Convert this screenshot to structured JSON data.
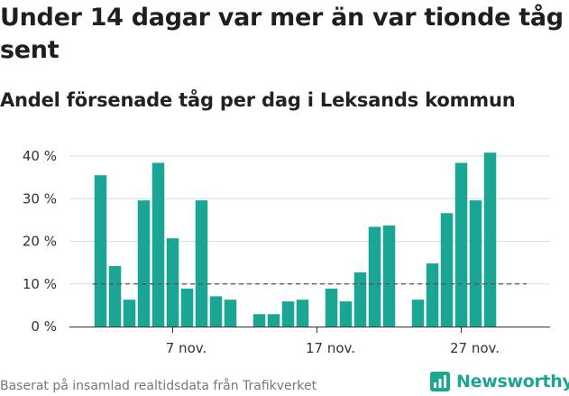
{
  "title": "Under 14 dagar var mer än var tionde tåg sent",
  "subtitle": "Andel försenade tåg per dag i Leksands kommun",
  "footer": "Baserat på insamlad realtidsdata från Trafikverket",
  "logo_text": "Newsworthy",
  "colors": {
    "bar": "#1aa594",
    "grid": "#dcdcdc",
    "reference": "#555555",
    "axis": "#333333",
    "brand": "#1ba68f"
  },
  "icons": {
    "logo": "newsworthy-logo-icon"
  },
  "chart_data": {
    "type": "bar",
    "title": "Under 14 dagar var mer än var tionde tåg sent",
    "subtitle": "Andel försenade tåg per dag i Leksands kommun",
    "xlabel": "",
    "ylabel": "",
    "unit": "%",
    "ylim": [
      0,
      40
    ],
    "yticks": [
      0,
      10,
      20,
      30,
      40
    ],
    "ytick_labels": [
      "0 %",
      "10 %",
      "20 %",
      "30 %",
      "40 %"
    ],
    "grid": true,
    "x_start_date": "2023-11-02",
    "x": [
      "2023-11-02",
      "2023-11-03",
      "2023-11-04",
      "2023-11-05",
      "2023-11-06",
      "2023-11-07",
      "2023-11-08",
      "2023-11-09",
      "2023-11-10",
      "2023-11-11",
      "2023-11-12",
      "2023-11-13",
      "2023-11-14",
      "2023-11-15",
      "2023-11-16",
      "2023-11-17",
      "2023-11-18",
      "2023-11-19",
      "2023-11-20",
      "2023-11-21",
      "2023-11-22",
      "2023-11-23",
      "2023-11-24",
      "2023-11-25",
      "2023-11-26",
      "2023-11-27",
      "2023-11-28",
      "2023-11-29",
      "2023-11-30"
    ],
    "values": [
      35.5,
      14.2,
      6.3,
      29.6,
      38.4,
      20.7,
      8.9,
      29.6,
      7.1,
      6.3,
      null,
      2.9,
      2.9,
      5.9,
      6.3,
      null,
      8.9,
      5.9,
      12.7,
      23.4,
      23.7,
      null,
      6.3,
      14.8,
      26.6,
      38.4,
      29.6,
      40.8,
      null
    ],
    "xtick_labels": [
      {
        "date": "2023-11-07",
        "label": "7 nov."
      },
      {
        "date": "2023-11-17",
        "label": "17 nov."
      },
      {
        "date": "2023-11-27",
        "label": "27 nov."
      }
    ],
    "reference_line": {
      "value": 10,
      "style": "dashed"
    }
  }
}
